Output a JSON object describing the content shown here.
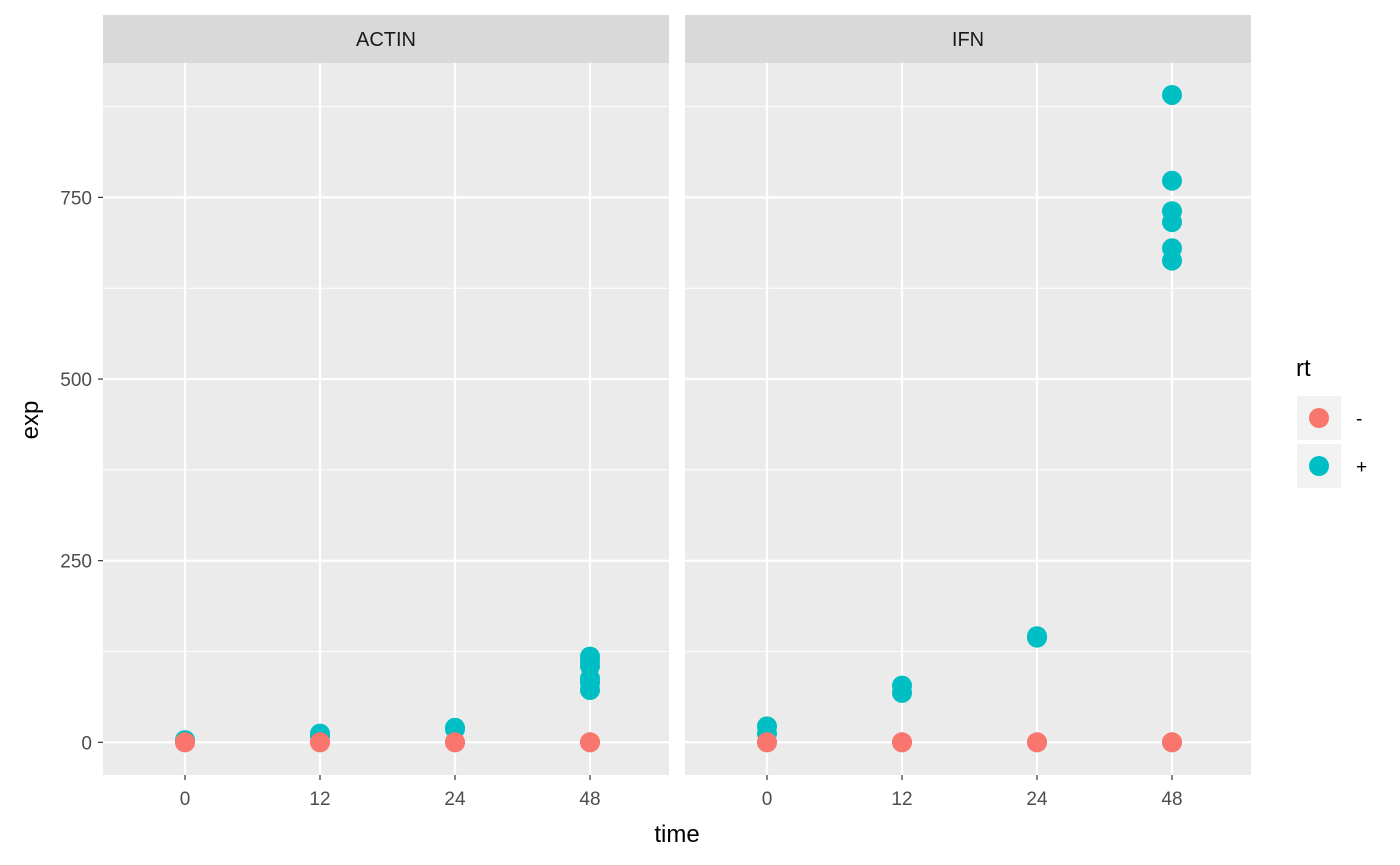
{
  "chart_data": {
    "type": "scatter",
    "facet_variable": "gene",
    "panels": [
      {
        "label": "ACTIN",
        "series": [
          {
            "name": "-",
            "points": [
              [
                0,
                0
              ],
              [
                0,
                0
              ],
              [
                12,
                0
              ],
              [
                12,
                0
              ],
              [
                24,
                0
              ],
              [
                24,
                0
              ],
              [
                48,
                0
              ],
              [
                48,
                0
              ]
            ]
          },
          {
            "name": "+",
            "points": [
              [
                0,
                2
              ],
              [
                0,
                3
              ],
              [
                12,
                8
              ],
              [
                12,
                12
              ],
              [
                24,
                18
              ],
              [
                24,
                20
              ],
              [
                48,
                72
              ],
              [
                48,
                82
              ],
              [
                48,
                88
              ],
              [
                48,
                105
              ],
              [
                48,
                112
              ],
              [
                48,
                118
              ]
            ]
          }
        ]
      },
      {
        "label": "IFN",
        "series": [
          {
            "name": "-",
            "points": [
              [
                0,
                0
              ],
              [
                0,
                0
              ],
              [
                12,
                0
              ],
              [
                12,
                0
              ],
              [
                24,
                0
              ],
              [
                24,
                0
              ],
              [
                48,
                0
              ],
              [
                48,
                0
              ]
            ]
          },
          {
            "name": "+",
            "points": [
              [
                0,
                12
              ],
              [
                0,
                22
              ],
              [
                12,
                68
              ],
              [
                12,
                78
              ],
              [
                24,
                144
              ],
              [
                24,
                146
              ],
              [
                48,
                663
              ],
              [
                48,
                680
              ],
              [
                48,
                716
              ],
              [
                48,
                731
              ],
              [
                48,
                773
              ],
              [
                48,
                891
              ]
            ]
          }
        ]
      }
    ],
    "x_categories": [
      "0",
      "12",
      "24",
      "48"
    ],
    "y_ticks": [
      0,
      250,
      500,
      750
    ],
    "ylim": [
      -45,
      935
    ],
    "xlabel": "time",
    "ylabel": "exp",
    "legend": {
      "title": "rt",
      "position": "right",
      "entries": [
        {
          "label": "-",
          "color": "#F8766D"
        },
        {
          "label": "+",
          "color": "#00BFC4"
        }
      ]
    },
    "colors": {
      "panel_background": "#EBEBEB",
      "grid": "#FFFFFF",
      "strip_background": "#D9D9D9"
    },
    "grid": true
  }
}
